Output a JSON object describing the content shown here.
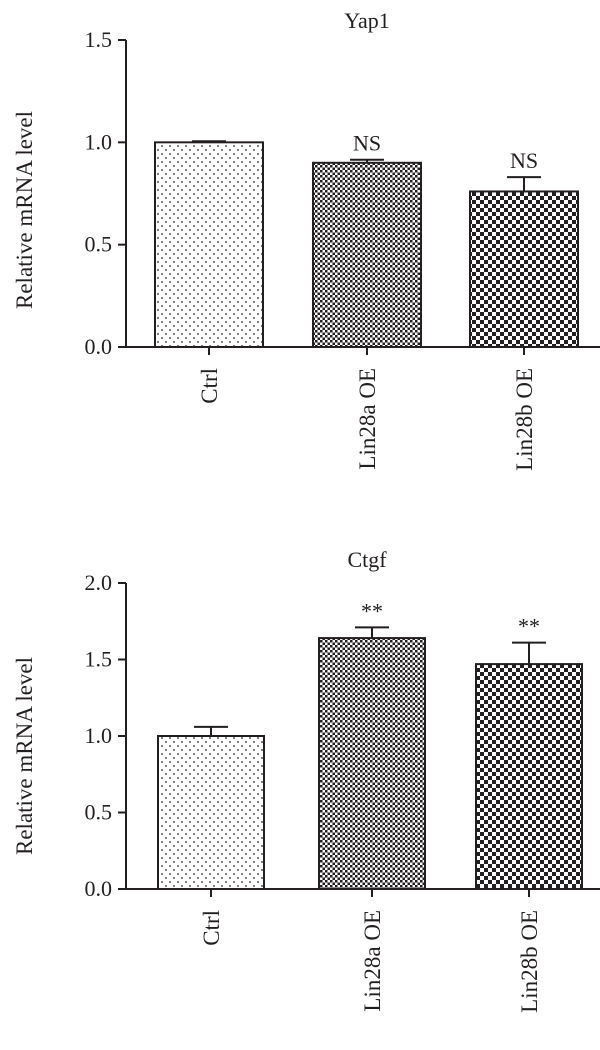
{
  "chart_data": [
    {
      "type": "bar",
      "title": "Yap1",
      "ylabel": "Relative mRNA level",
      "xlabel": "",
      "categories": [
        "Ctrl",
        "Lin28a OE",
        "Lin28b OE"
      ],
      "values": [
        1.0,
        0.9,
        0.76
      ],
      "errors": [
        0.005,
        0.015,
        0.07
      ],
      "annotations": [
        "",
        "NS",
        "NS"
      ],
      "fills": [
        "dots",
        "checker-fine",
        "checker-coarse"
      ],
      "ylim": [
        0,
        1.5
      ],
      "yticks": [
        0.0,
        0.5,
        1.0,
        1.5
      ],
      "ytick_labels": [
        "0.0",
        "0.5",
        "1.0",
        "1.5"
      ],
      "grid": false
    },
    {
      "type": "bar",
      "title": "Ctgf",
      "ylabel": "Relative mRNA level",
      "xlabel": "",
      "categories": [
        "Ctrl",
        "Lin28a OE",
        "Lin28b OE"
      ],
      "values": [
        1.0,
        1.64,
        1.47
      ],
      "errors": [
        0.06,
        0.07,
        0.14
      ],
      "annotations": [
        "",
        "**",
        "**"
      ],
      "fills": [
        "dots",
        "checker-fine",
        "checker-coarse"
      ],
      "ylim": [
        0,
        2.0
      ],
      "yticks": [
        0.0,
        0.5,
        1.0,
        1.5,
        2.0
      ],
      "ytick_labels": [
        "0.0",
        "0.5",
        "1.0",
        "1.5",
        "2.0"
      ],
      "grid": false
    }
  ],
  "colors": {
    "ink": "#231f20",
    "background": "#ffffff"
  }
}
